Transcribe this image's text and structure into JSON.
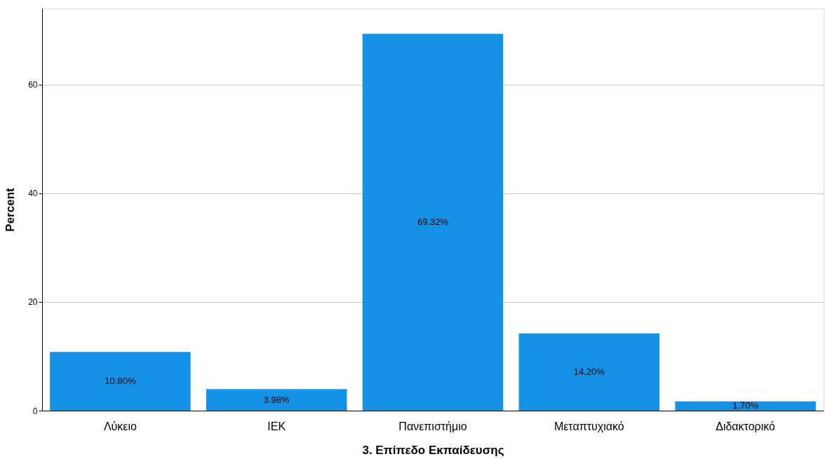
{
  "chart_data": {
    "type": "bar",
    "xlabel": "3. Επίπεδο Εκπαίδευσης",
    "ylabel": "Percent",
    "categories": [
      "Λύκειο",
      "ΙΕΚ",
      "Πανεπιστήμιο",
      "Μεταπτυχιακό",
      "Διδακτορικό"
    ],
    "values": [
      10.8,
      3.98,
      69.32,
      14.2,
      1.7
    ],
    "value_labels": [
      "10.80%",
      "3.98%",
      "69.32%",
      "14.20%",
      "1.70%"
    ],
    "color": "#1592e6",
    "ylim": [
      0,
      74
    ],
    "yticks": [
      0,
      20,
      40,
      60
    ],
    "grid": "y"
  }
}
